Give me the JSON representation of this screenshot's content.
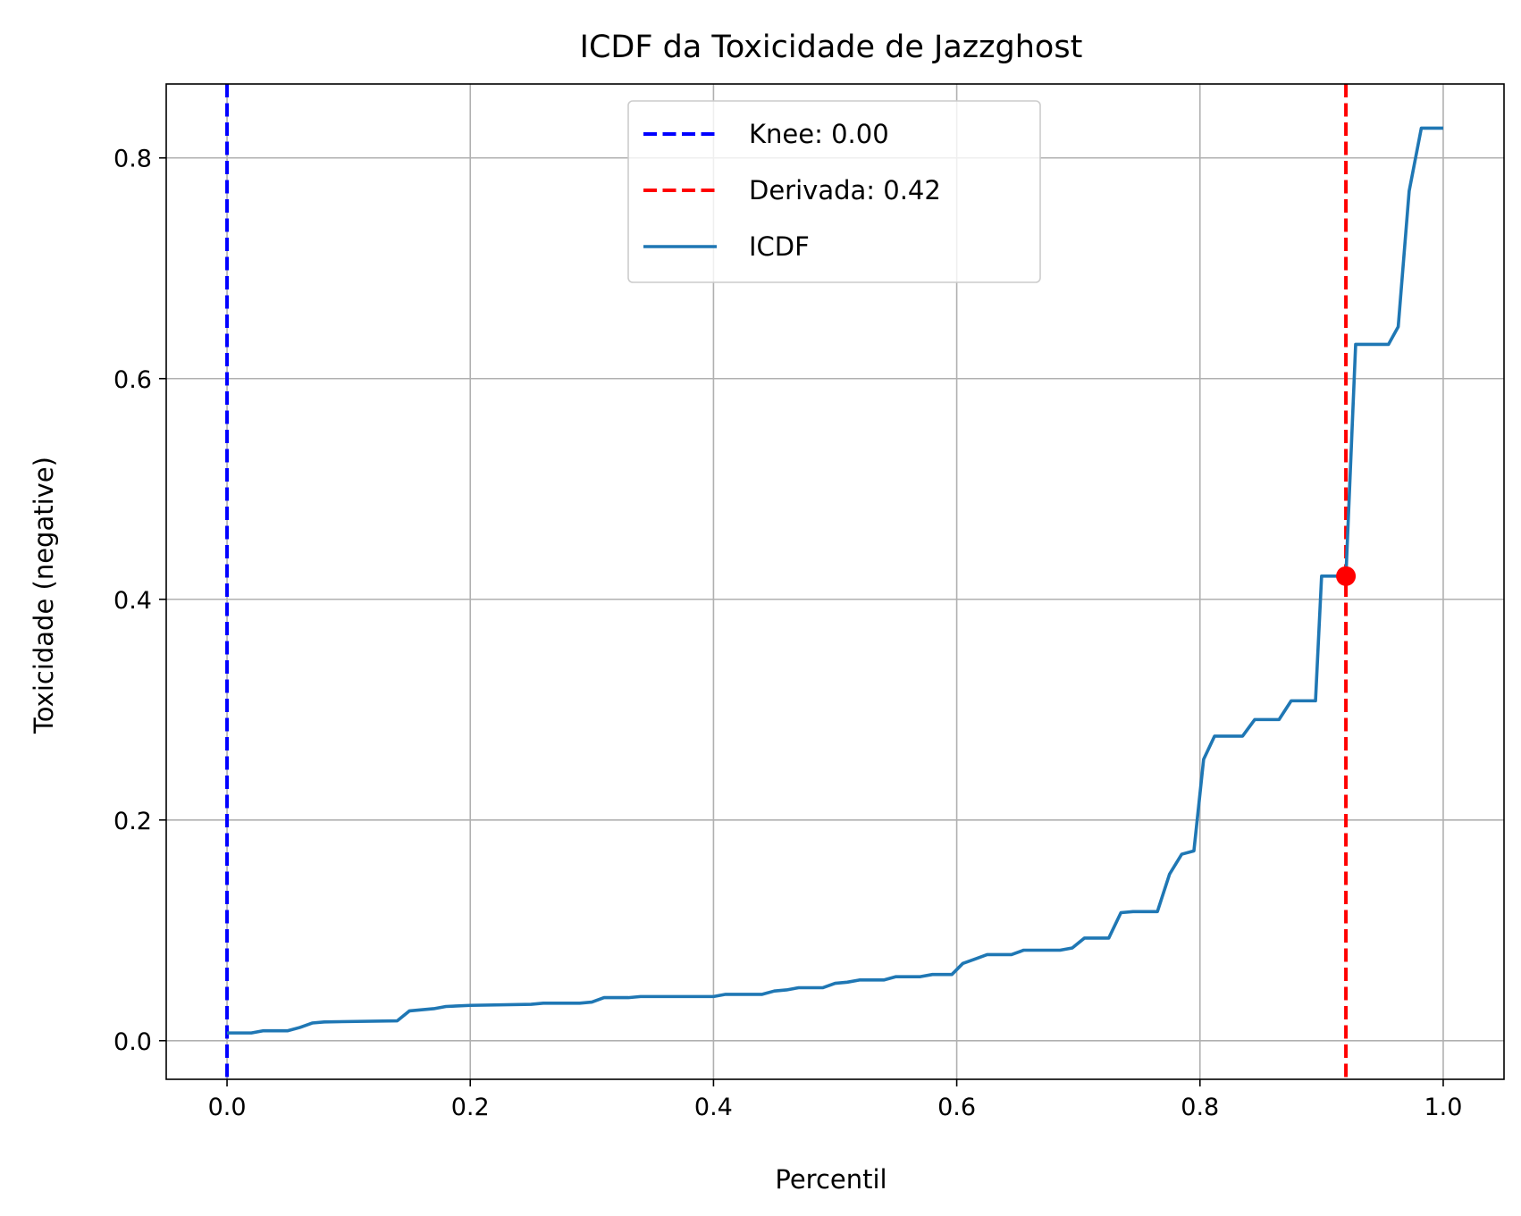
{
  "chart_data": {
    "type": "line",
    "title": "ICDF da Toxicidade de Jazzghost",
    "xlabel": "Percentil",
    "ylabel": "Toxicidade (negative)",
    "xlim": [
      -0.05,
      1.05
    ],
    "ylim": [
      -0.035,
      0.867
    ],
    "xticks": [
      0.0,
      0.2,
      0.4,
      0.6,
      0.8,
      1.0
    ],
    "xtick_labels": [
      "0.0",
      "0.2",
      "0.4",
      "0.6",
      "0.8",
      "1.0"
    ],
    "yticks": [
      0.0,
      0.2,
      0.4,
      0.6,
      0.8
    ],
    "ytick_labels": [
      "0.0",
      "0.2",
      "0.4",
      "0.6",
      "0.8"
    ],
    "grid": true,
    "legend_position": "top-center",
    "series": [
      {
        "name": "ICDF",
        "color": "#1f77b4",
        "style": "solid",
        "x": [
          0.0,
          0.02,
          0.03,
          0.05,
          0.06,
          0.07,
          0.08,
          0.14,
          0.15,
          0.17,
          0.18,
          0.2,
          0.25,
          0.26,
          0.29,
          0.3,
          0.31,
          0.33,
          0.34,
          0.4,
          0.41,
          0.44,
          0.45,
          0.46,
          0.47,
          0.49,
          0.5,
          0.51,
          0.52,
          0.54,
          0.55,
          0.57,
          0.58,
          0.596,
          0.605,
          0.615,
          0.625,
          0.645,
          0.655,
          0.685,
          0.695,
          0.705,
          0.725,
          0.735,
          0.745,
          0.765,
          0.775,
          0.785,
          0.795,
          0.803,
          0.812,
          0.835,
          0.845,
          0.865,
          0.875,
          0.895,
          0.9,
          0.92,
          0.928,
          0.935,
          0.955,
          0.963,
          0.972,
          0.982,
          1.0
        ],
        "y": [
          0.007,
          0.007,
          0.009,
          0.009,
          0.012,
          0.016,
          0.017,
          0.018,
          0.027,
          0.029,
          0.031,
          0.032,
          0.033,
          0.034,
          0.034,
          0.035,
          0.039,
          0.039,
          0.04,
          0.04,
          0.042,
          0.042,
          0.045,
          0.046,
          0.048,
          0.048,
          0.052,
          0.053,
          0.055,
          0.055,
          0.058,
          0.058,
          0.06,
          0.06,
          0.07,
          0.074,
          0.078,
          0.078,
          0.082,
          0.082,
          0.084,
          0.093,
          0.093,
          0.116,
          0.117,
          0.117,
          0.151,
          0.169,
          0.172,
          0.255,
          0.276,
          0.276,
          0.291,
          0.291,
          0.308,
          0.308,
          0.421,
          0.421,
          0.631,
          0.631,
          0.631,
          0.647,
          0.77,
          0.827,
          0.827
        ]
      }
    ],
    "vlines": [
      {
        "name": "Knee: 0.00",
        "x": 0.0,
        "color": "#0000ff",
        "style": "dashed"
      },
      {
        "name": "Derivada: 0.42",
        "x": 0.92,
        "color": "#ff0000",
        "style": "dashed"
      }
    ],
    "markers": [
      {
        "x": 0.92,
        "y": 0.421,
        "color": "#ff0000"
      }
    ]
  }
}
